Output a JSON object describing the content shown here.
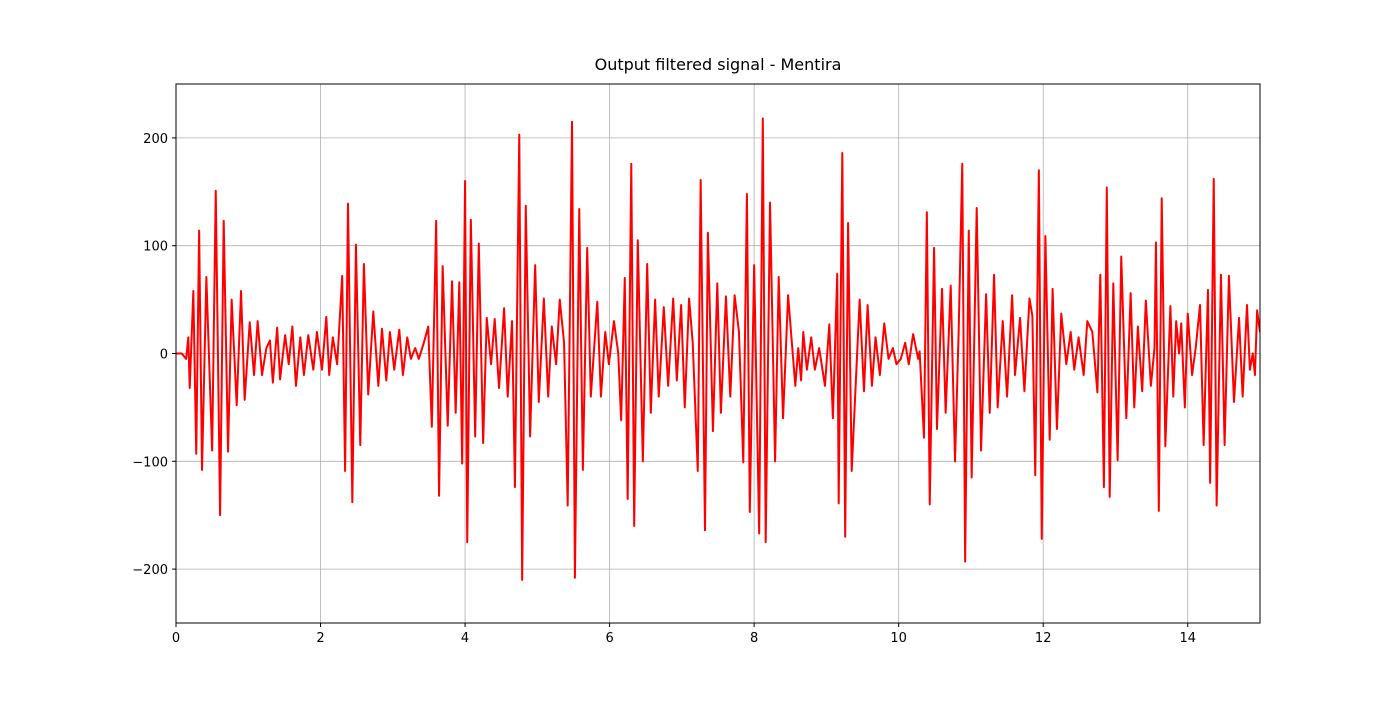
{
  "chart_data": {
    "type": "line",
    "title": "Output filtered signal - Mentira",
    "color": "#ff0000",
    "grid": true,
    "xlim": [
      0,
      15
    ],
    "ylim": [
      -250,
      250
    ],
    "xticks": [
      0,
      2,
      4,
      6,
      8,
      10,
      12,
      14
    ],
    "yticks": [
      {
        "value": -200,
        "label": "−200"
      },
      {
        "value": -100,
        "label": "−100"
      },
      0,
      100,
      200
    ],
    "x": [
      0,
      0.08,
      0.14,
      0.17,
      0.19,
      0.24,
      0.28,
      0.32,
      0.36,
      0.42,
      0.5,
      0.55,
      0.61,
      0.66,
      0.72,
      0.77,
      0.84,
      0.9,
      0.95,
      1.02,
      1.08,
      1.13,
      1.19,
      1.25,
      1.3,
      1.34,
      1.4,
      1.44,
      1.51,
      1.56,
      1.61,
      1.66,
      1.72,
      1.77,
      1.83,
      1.9,
      1.95,
      2.02,
      2.08,
      2.12,
      2.17,
      2.23,
      2.3,
      2.34,
      2.38,
      2.44,
      2.49,
      2.55,
      2.6,
      2.66,
      2.73,
      2.8,
      2.85,
      2.91,
      2.96,
      3.02,
      3.09,
      3.14,
      3.2,
      3.25,
      3.31,
      3.36,
      3.43,
      3.49,
      3.54,
      3.6,
      3.64,
      3.69,
      3.76,
      3.82,
      3.87,
      3.92,
      3.96,
      4,
      4.03,
      4.08,
      4.14,
      4.19,
      4.25,
      4.3,
      4.36,
      4.41,
      4.47,
      4.54,
      4.59,
      4.65,
      4.69,
      4.75,
      4.79,
      4.84,
      4.9,
      4.97,
      5.02,
      5.09,
      5.15,
      5.2,
      5.26,
      5.31,
      5.37,
      5.42,
      5.48,
      5.52,
      5.58,
      5.63,
      5.69,
      5.74,
      5.83,
      5.88,
      5.94,
      5.99,
      6.06,
      6.12,
      6.16,
      6.21,
      6.25,
      6.3,
      6.34,
      6.39,
      6.46,
      6.52,
      6.57,
      6.63,
      6.68,
      6.75,
      6.81,
      6.88,
      6.93,
      6.99,
      7.04,
      7.1,
      7.15,
      7.22,
      7.26,
      7.32,
      7.36,
      7.43,
      7.49,
      7.54,
      7.61,
      7.67,
      7.73,
      7.79,
      7.85,
      7.9,
      7.94,
      8,
      8.07,
      8.12,
      8.16,
      8.22,
      8.29,
      8.34,
      8.4,
      8.47,
      8.51,
      8.57,
      8.61,
      8.65,
      8.68,
      8.73,
      8.79,
      8.84,
      8.9,
      8.98,
      9.04,
      9.09,
      9.15,
      9.17,
      9.22,
      9.26,
      9.3,
      9.35,
      9.46,
      9.52,
      9.57,
      9.63,
      9.68,
      9.74,
      9.8,
      9.86,
      9.92,
      9.97,
      10.03,
      10.09,
      10.14,
      10.2,
      10.27,
      10.29,
      10.35,
      10.39,
      10.43,
      10.49,
      10.53,
      10.6,
      10.65,
      10.72,
      10.78,
      10.83,
      10.88,
      10.92,
      10.97,
      11.01,
      11.08,
      11.14,
      11.21,
      11.26,
      11.32,
      11.37,
      11.44,
      11.5,
      11.57,
      11.61,
      11.68,
      11.74,
      11.81,
      11.85,
      11.89,
      11.94,
      11.98,
      12.03,
      12.09,
      12.13,
      12.19,
      12.25,
      12.32,
      12.38,
      12.43,
      12.49,
      12.56,
      12.61,
      12.68,
      12.75,
      12.79,
      12.84,
      12.88,
      12.92,
      12.97,
      13.03,
      13.08,
      13.15,
      13.21,
      13.26,
      13.31,
      13.37,
      13.42,
      13.49,
      13.54,
      13.56,
      13.6,
      13.64,
      13.69,
      13.76,
      13.8,
      13.84,
      13.88,
      13.91,
      13.96,
      14,
      14.06,
      14.11,
      14.17,
      14.22,
      14.28,
      14.31,
      14.36,
      14.4,
      14.46,
      14.51,
      14.57,
      14.64,
      14.71,
      14.76,
      14.82,
      14.86,
      14.9,
      14.93,
      14.96,
      15
    ],
    "values": [
      0,
      0,
      -5,
      15,
      -32,
      58,
      -93,
      114,
      -108,
      71,
      -90,
      151,
      -150,
      123,
      -91,
      50,
      -48,
      58,
      -43,
      29,
      -20,
      30,
      -20,
      5,
      12,
      -27,
      24,
      -24,
      17,
      -10,
      25,
      -30,
      15,
      -20,
      17,
      -15,
      20,
      -15,
      34,
      -20,
      15,
      -10,
      72,
      -109,
      139,
      -138,
      101,
      -85,
      83,
      -38,
      39,
      -30,
      23,
      -25,
      20,
      -15,
      22,
      -20,
      15,
      -5,
      5,
      -5,
      10,
      25,
      -68,
      123,
      -132,
      81,
      -67,
      67,
      -55,
      66,
      -102,
      160,
      -175,
      124,
      -77,
      102,
      -83,
      33,
      -10,
      32,
      -32,
      42,
      -40,
      30,
      -124,
      203,
      -210,
      137,
      -77,
      82,
      -45,
      51,
      -40,
      25,
      -10,
      50,
      10,
      -141,
      215,
      -208,
      134,
      -108,
      98,
      -40,
      48,
      -40,
      20,
      -10,
      30,
      0,
      -62,
      70,
      -135,
      176,
      -160,
      105,
      -100,
      83,
      -55,
      50,
      -40,
      43,
      -30,
      51,
      -25,
      45,
      -50,
      51,
      10,
      -109,
      161,
      -164,
      112,
      -72,
      65,
      -55,
      53,
      -40,
      54,
      20,
      -101,
      148,
      -147,
      82,
      -167,
      218,
      -175,
      140,
      -100,
      71,
      -60,
      54,
      20,
      -30,
      5,
      -25,
      20,
      -15,
      15,
      -15,
      5,
      -30,
      27,
      -60,
      74,
      -139,
      186,
      -170,
      121,
      -109,
      50,
      -35,
      45,
      -30,
      15,
      -20,
      28,
      -5,
      5,
      -10,
      -5,
      10,
      -10,
      18,
      -5,
      2,
      -78,
      131,
      -140,
      98,
      -70,
      60,
      -55,
      63,
      -100,
      20,
      176,
      -193,
      114,
      -115,
      135,
      -90,
      55,
      -55,
      73,
      -50,
      30,
      -40,
      54,
      -20,
      33,
      -35,
      51,
      35,
      -113,
      170,
      -172,
      109,
      -80,
      60,
      -70,
      37,
      -10,
      20,
      -15,
      15,
      -20,
      30,
      20,
      -36,
      73,
      -124,
      154,
      -133,
      65,
      -99,
      90,
      -60,
      56,
      -50,
      25,
      -35,
      49,
      -30,
      5,
      103,
      -146,
      144,
      -86,
      44,
      -40,
      30,
      0,
      28,
      -50,
      37,
      -20,
      5,
      45,
      -85,
      59,
      -120,
      162,
      -141,
      73,
      -85,
      72,
      -45,
      33,
      -40,
      45,
      -15,
      0,
      -20,
      40,
      20
    ]
  }
}
